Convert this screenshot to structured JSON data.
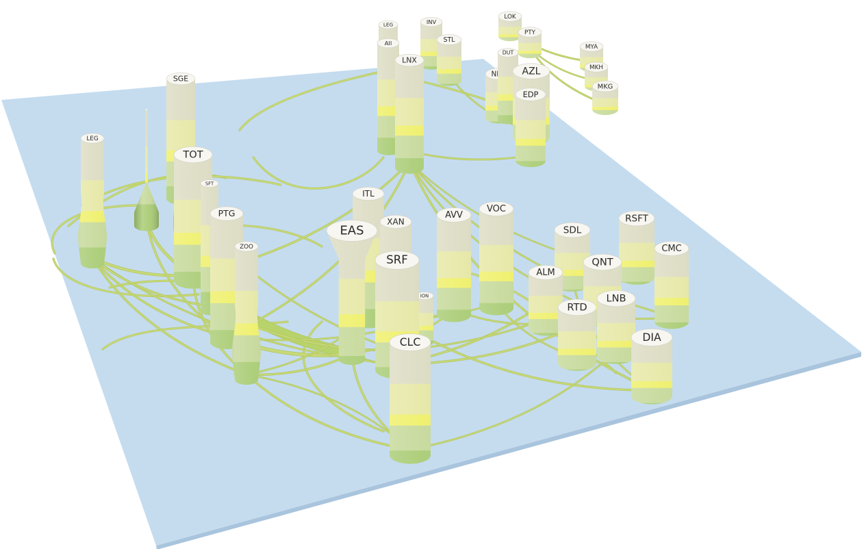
{
  "diagram": {
    "type": "3d-cylinder-flow-map",
    "colors": {
      "plane": "#c5dcef",
      "plane_edge": "#a9c4dd",
      "cyl_top": "#f7f6f0",
      "band_cream": "#dcdcc3",
      "band_light_yellow": "#e6e8a6",
      "band_yellow": "#eff06a",
      "band_pale_green": "#c6d99a",
      "band_green": "#a9cc74",
      "flow_color": "#c7d977",
      "flow_edge": "#b2c560",
      "thick_flow": "#b7d36a"
    },
    "nodes": [
      {
        "id": "LEG",
        "label": "LEG"
      },
      {
        "id": "SGE",
        "label": "SGE"
      },
      {
        "id": "TOT",
        "label": "TOT"
      },
      {
        "id": "SFT",
        "label": "SFT"
      },
      {
        "id": "PTG",
        "label": "PTG"
      },
      {
        "id": "ZOO",
        "label": "ZOO"
      },
      {
        "id": "SPIKE",
        "label": ""
      },
      {
        "id": "LEG2",
        "label": "LEG"
      },
      {
        "id": "INV",
        "label": "INV"
      },
      {
        "id": "AII",
        "label": "AII"
      },
      {
        "id": "STL",
        "label": "STL"
      },
      {
        "id": "LNX",
        "label": "LNX"
      },
      {
        "id": "LOK",
        "label": "LOK"
      },
      {
        "id": "PTY",
        "label": "PTY"
      },
      {
        "id": "MYA",
        "label": "MYA"
      },
      {
        "id": "MKH",
        "label": "MKH"
      },
      {
        "id": "MKG",
        "label": "MKG"
      },
      {
        "id": "DUT",
        "label": "DUT"
      },
      {
        "id": "NFTI",
        "label": "NFTI"
      },
      {
        "id": "AZL",
        "label": "AZL"
      },
      {
        "id": "EDP",
        "label": "EDP"
      },
      {
        "id": "ITL",
        "label": "ITL"
      },
      {
        "id": "XAN",
        "label": "XAN"
      },
      {
        "id": "EAS",
        "label": "EAS"
      },
      {
        "id": "SRF",
        "label": "SRF"
      },
      {
        "id": "ION",
        "label": "ION"
      },
      {
        "id": "CLC",
        "label": "CLC"
      },
      {
        "id": "AVV",
        "label": "AVV"
      },
      {
        "id": "VOC",
        "label": "VOC"
      },
      {
        "id": "SDL",
        "label": "SDL"
      },
      {
        "id": "RSFT",
        "label": "RSFT"
      },
      {
        "id": "CMC",
        "label": "CMC"
      },
      {
        "id": "QNT",
        "label": "QNT"
      },
      {
        "id": "ALM",
        "label": "ALM"
      },
      {
        "id": "RTD",
        "label": "RTD"
      },
      {
        "id": "LNB",
        "label": "LNB"
      },
      {
        "id": "DIA",
        "label": "DIA"
      }
    ]
  }
}
